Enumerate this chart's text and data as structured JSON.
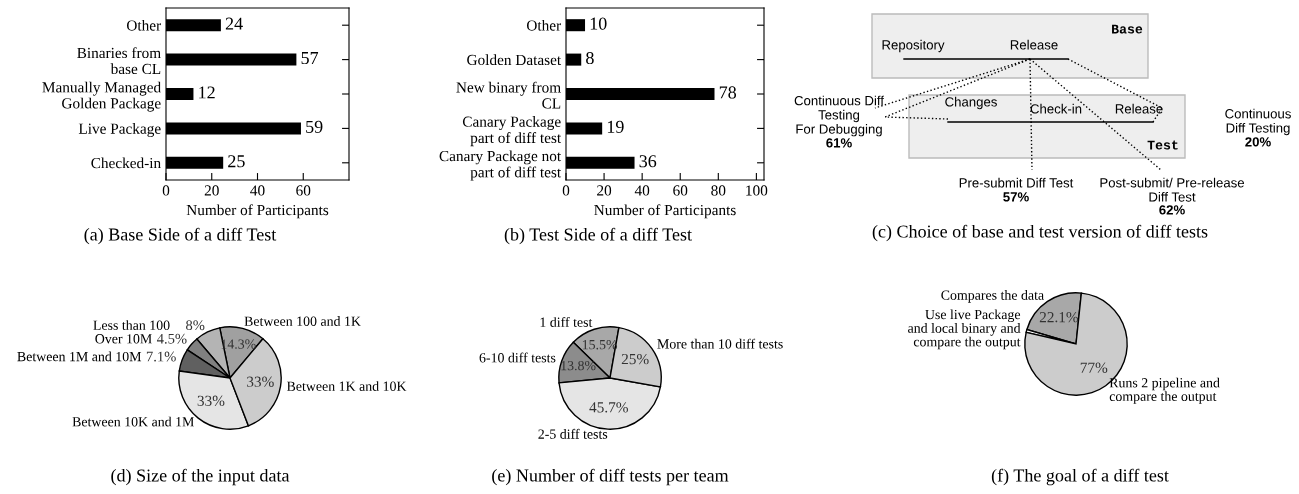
{
  "chart_data": [
    {
      "type": "bar",
      "orientation": "horizontal",
      "title": "(a) Base Side of a diff Test",
      "categories": [
        "Other",
        "Binaries from\nbase CL",
        "Manually Managed\nGolden Package",
        "Live Package",
        "Checked-in"
      ],
      "values": [
        24,
        57,
        12,
        59,
        25
      ],
      "color": "#000000",
      "xlim": [
        0,
        80
      ],
      "xticks": [
        0,
        20,
        40,
        60
      ],
      "xlabel": "Number of Participants",
      "data_labels": true,
      "grid": false
    },
    {
      "type": "bar",
      "orientation": "horizontal",
      "title": "(b) Test Side of a diff Test",
      "categories": [
        "Other",
        "Golden Dataset",
        "New binary from\nCL",
        "Canary Package\npart of diff test",
        "Canary Package not\npart of diff test"
      ],
      "values": [
        10,
        8,
        78,
        19,
        36
      ],
      "color": "#000000",
      "xlim": [
        0,
        104
      ],
      "xticks": [
        0,
        20,
        40,
        60,
        80,
        100
      ],
      "xlabel": "Number of Participants",
      "data_labels": true,
      "grid": false
    },
    {
      "type": "other",
      "title": "(c) Choice of base and test version of diff tests",
      "annotations": [
        "Base",
        "Repository",
        "Release",
        "Test",
        "Changes",
        "Check-in",
        "Release",
        "Continuous Diff\nTesting\nFor Debugging",
        "61%",
        "Continuous\nDiff Testing",
        "20%",
        "Pre-submit Diff Test",
        "57%",
        "Post-submit/ Pre-release\nDiff Test",
        "62%"
      ]
    },
    {
      "type": "pie",
      "title": "(d) Size of the input data",
      "categories": [
        "Between 100 and 1K",
        "Less than 100",
        "Over 10M",
        "Between 1M and 10M",
        "Between 10K and 1M",
        "Between 1K and 10K"
      ],
      "values": [
        14.3,
        8,
        4.5,
        7.1,
        33,
        33
      ],
      "value_labels": [
        "14.3%",
        "8%",
        "4.5%",
        "7.1%",
        "33%",
        "33%"
      ],
      "colors": [
        "#a0a0a0",
        "#b4b4b4",
        "#808080",
        "#606060",
        "#e5e5e5",
        "#cccccc"
      ]
    },
    {
      "type": "pie",
      "title": "(e) Number of diff tests per team",
      "categories": [
        "1 diff test",
        "6-10 diff tests",
        "2-5 diff tests",
        "More than 10 diff tests"
      ],
      "values": [
        15.5,
        13.8,
        45.7,
        25
      ],
      "value_labels": [
        "15.5%",
        "13.8%",
        "45.7%",
        "25%"
      ],
      "colors": [
        "#a8a8a8",
        "#8c8c8c",
        "#e5e5e5",
        "#cccccc"
      ]
    },
    {
      "type": "pie",
      "title": "(f) The goal of a diff test",
      "categories": [
        "Compares the data",
        "Use live Package\nand local binary and\ncompare the output",
        "Runs 2 pipeline and\ncompare the output"
      ],
      "values": [
        22.1,
        0.9,
        77
      ],
      "value_labels": [
        "22.1%",
        null,
        "77%"
      ],
      "colors": [
        "#a8a8a8",
        "#ffffff",
        "#cccccc"
      ]
    }
  ]
}
